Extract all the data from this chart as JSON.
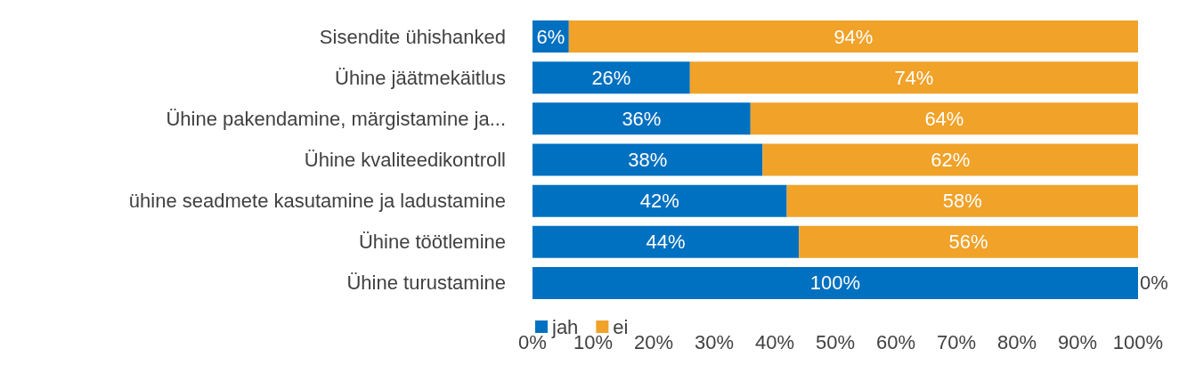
{
  "chart_data": {
    "type": "bar",
    "orientation": "horizontal",
    "stacked": true,
    "categories": [
      "Sisendite ühishanked",
      "Ühine jäätmekäitlus",
      "Ühine pakendamine, märgistamine ja...",
      "Ühine kvaliteedikontroll",
      "ühine seadmete kasutamine ja ladustamine",
      "Ühine töötlemine",
      "Ühine turustamine"
    ],
    "series": [
      {
        "name": "jah",
        "color": "#0070c0",
        "values": [
          6,
          26,
          36,
          38,
          42,
          44,
          100
        ],
        "value_labels": [
          "6%",
          "26%",
          "36%",
          "38%",
          "42%",
          "44%",
          "100%"
        ]
      },
      {
        "name": "ei",
        "color": "#f0a229",
        "values": [
          94,
          74,
          64,
          62,
          58,
          56,
          0
        ],
        "value_labels": [
          "94%",
          "74%",
          "64%",
          "62%",
          "58%",
          "56%",
          "0%"
        ]
      }
    ],
    "xlim": [
      0,
      100
    ],
    "xticks": [
      {
        "value": 0,
        "label": "0%"
      },
      {
        "value": 10,
        "label": "10%"
      },
      {
        "value": 20,
        "label": "20%"
      },
      {
        "value": 30,
        "label": "30%"
      },
      {
        "value": 40,
        "label": "40%"
      },
      {
        "value": 50,
        "label": "50%"
      },
      {
        "value": 60,
        "label": "60%"
      },
      {
        "value": 70,
        "label": "70%"
      },
      {
        "value": 80,
        "label": "80%"
      },
      {
        "value": 90,
        "label": "90%"
      },
      {
        "value": 100,
        "label": "100%"
      }
    ],
    "legend": "bottom left"
  }
}
